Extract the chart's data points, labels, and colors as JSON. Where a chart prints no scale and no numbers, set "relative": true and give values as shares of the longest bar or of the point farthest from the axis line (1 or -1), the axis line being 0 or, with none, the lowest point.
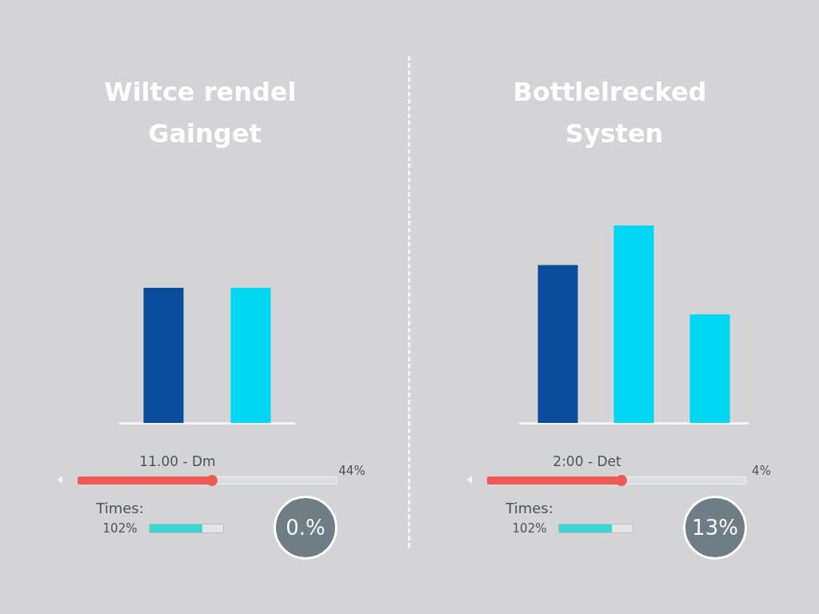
{
  "chart_data": [
    {
      "type": "bar",
      "title": "Wiltce rendel Gainget",
      "relative": true,
      "categories": [
        null,
        null
      ],
      "values": [
        1,
        1
      ],
      "colors": [
        "#0a4d9c",
        "#00d7f2"
      ],
      "annotations": [
        "11.00 - Dm",
        "44%",
        "Times:",
        "102%",
        "0.%"
      ]
    },
    {
      "type": "bar",
      "title": "Bottlelrecked Systen",
      "relative": true,
      "categories": [
        null,
        null,
        null
      ],
      "values": [
        0.8,
        1,
        0.55
      ],
      "colors": [
        "#0a4d9c",
        "#00d7f2",
        "#00d7f2"
      ],
      "annotations": [
        "2:00 - Det",
        "4%",
        "Times:",
        "102%",
        "13%"
      ]
    }
  ]
}
